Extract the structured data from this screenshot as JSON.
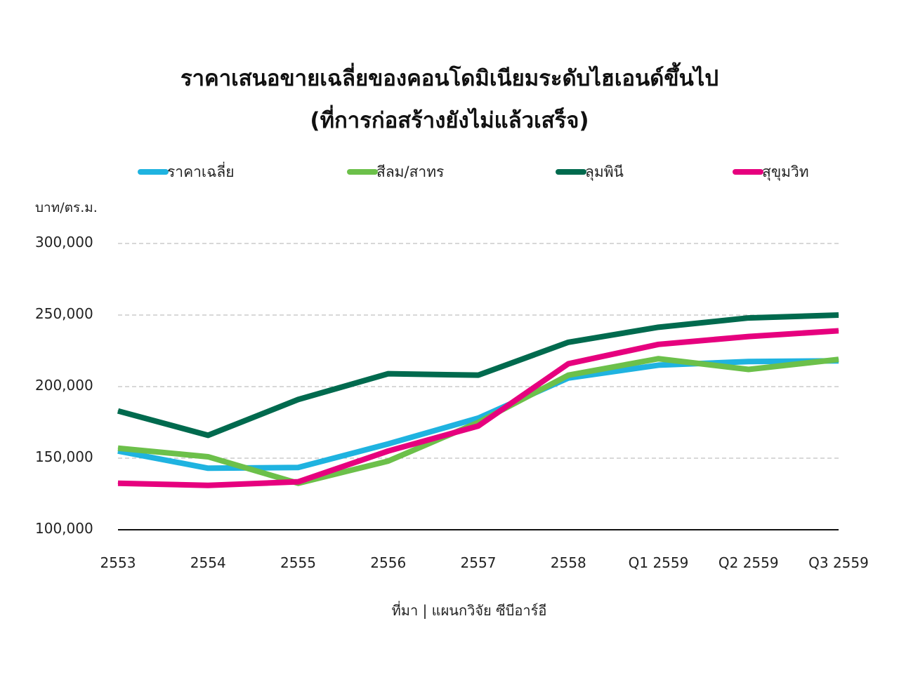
{
  "chart_data": {
    "type": "line",
    "title": "ราคาเสนอขายเฉลี่ยของคอนโดมิเนียมระดับไฮเอนด์ขึ้นไป",
    "subtitle": "(ที่การก่อสร้างยังไม่แล้วเสร็จ)",
    "ylabel": "บาท/ตร.ม.",
    "xlabel": "",
    "source": "ที่มา | แผนกวิจัย ซีบีอาร์อี",
    "categories": [
      "2553",
      "2554",
      "2555",
      "2556",
      "2557",
      "2558",
      "Q1 2559",
      "Q2 2559",
      "Q3 2559"
    ],
    "ylim": [
      100000,
      300000
    ],
    "yticks": [
      100000,
      150000,
      200000,
      250000,
      300000
    ],
    "ytick_labels": [
      "100,000",
      "150,000",
      "200,000",
      "250,000",
      "300,000"
    ],
    "grid": true,
    "legend_position": "top",
    "series": [
      {
        "name": "ราคาเฉลี่ย",
        "color": "#1fb3e0",
        "values": [
          155000,
          143000,
          143500,
          160000,
          178000,
          206000,
          215000,
          217500,
          218000
        ]
      },
      {
        "name": "สีลม/สาทร",
        "color": "#6cc04a",
        "values": [
          157000,
          151000,
          132500,
          148000,
          175000,
          208000,
          219500,
          212000,
          219000
        ]
      },
      {
        "name": "ลุมพินี",
        "color": "#006a4e",
        "values": [
          183000,
          166000,
          191000,
          209000,
          208000,
          231000,
          241500,
          248000,
          250000
        ]
      },
      {
        "name": "สุขุมวิท",
        "color": "#e6007e",
        "values": [
          132500,
          131000,
          133500,
          155000,
          172500,
          216000,
          229500,
          235000,
          239000
        ]
      }
    ]
  }
}
